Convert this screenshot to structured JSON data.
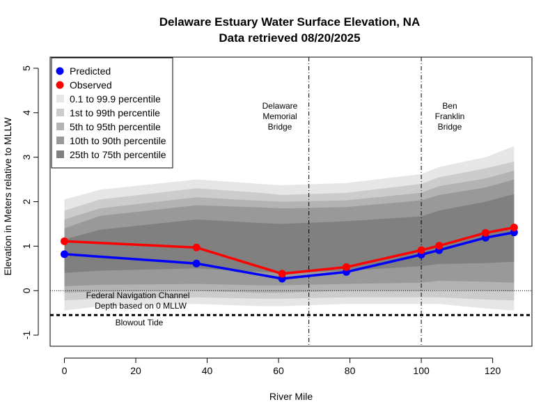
{
  "chart_data": {
    "type": "line",
    "title": "Delaware Estuary Water Surface Elevation,  NA",
    "subtitle": "Data retrieved  08/20/2025",
    "xlabel": "River Mile",
    "ylabel": "Elevation in Meters relative to MLLW",
    "xlim": [
      -4,
      131
    ],
    "ylim": [
      -1.25,
      5.25
    ],
    "xticks": [
      0,
      20,
      40,
      60,
      80,
      100,
      120
    ],
    "yticks": [
      -1,
      0,
      1,
      2,
      3,
      4,
      5
    ],
    "series": [
      {
        "name": "Predicted",
        "color": "#0000ff",
        "x": [
          0,
          37,
          61,
          79,
          100,
          105,
          118,
          126
        ],
        "y": [
          0.82,
          0.61,
          0.27,
          0.42,
          0.81,
          0.91,
          1.19,
          1.31
        ]
      },
      {
        "name": "Observed",
        "color": "#ff0000",
        "x": [
          0,
          37,
          61,
          79,
          100,
          105,
          118,
          126
        ],
        "y": [
          1.11,
          0.97,
          0.38,
          0.53,
          0.91,
          1.01,
          1.3,
          1.42
        ]
      }
    ],
    "bands": [
      {
        "name": "0.1 to 99.9 percentile",
        "color": "#e6e6e6",
        "x": [
          0,
          10,
          37,
          55,
          61,
          79,
          100,
          105,
          118,
          126
        ],
        "lower": [
          -0.45,
          -0.35,
          -0.3,
          -0.35,
          -0.35,
          -0.3,
          -0.3,
          -0.3,
          -0.4,
          -0.45
        ],
        "upper": [
          2.05,
          2.27,
          2.5,
          2.4,
          2.37,
          2.42,
          2.62,
          2.78,
          3.0,
          3.25
        ]
      },
      {
        "name": "1st to 99th percentile",
        "color": "#cccccc",
        "x": [
          0,
          10,
          37,
          55,
          61,
          79,
          100,
          105,
          118,
          126
        ],
        "lower": [
          -0.22,
          -0.18,
          -0.15,
          -0.18,
          -0.18,
          -0.15,
          -0.15,
          -0.15,
          -0.2,
          -0.22
        ],
        "upper": [
          1.8,
          2.05,
          2.3,
          2.2,
          2.15,
          2.2,
          2.4,
          2.55,
          2.75,
          2.9
        ]
      },
      {
        "name": "5th to 95th percentile",
        "color": "#b3b3b3",
        "x": [
          0,
          10,
          37,
          55,
          61,
          79,
          100,
          105,
          118,
          126
        ],
        "lower": [
          -0.05,
          -0.02,
          0.0,
          -0.05,
          -0.05,
          0.0,
          0.0,
          0.02,
          0.0,
          -0.02
        ],
        "upper": [
          1.6,
          1.85,
          2.1,
          2.02,
          2.0,
          2.03,
          2.2,
          2.35,
          2.52,
          2.7
        ]
      },
      {
        "name": "10th to 90th percentile",
        "color": "#999999",
        "x": [
          0,
          10,
          37,
          55,
          61,
          79,
          100,
          105,
          118,
          126
        ],
        "lower": [
          0.1,
          0.13,
          0.15,
          0.12,
          0.12,
          0.15,
          0.18,
          0.22,
          0.2,
          0.18
        ],
        "upper": [
          1.4,
          1.68,
          1.92,
          1.87,
          1.85,
          1.88,
          2.03,
          2.15,
          2.32,
          2.5
        ]
      },
      {
        "name": "25th to 75th percentile",
        "color": "#808080",
        "x": [
          0,
          10,
          37,
          55,
          61,
          79,
          100,
          105,
          118,
          126
        ],
        "lower": [
          0.4,
          0.45,
          0.5,
          0.42,
          0.4,
          0.45,
          0.55,
          0.6,
          0.62,
          0.65
        ],
        "upper": [
          1.15,
          1.37,
          1.6,
          1.52,
          1.5,
          1.56,
          1.67,
          1.8,
          2.0,
          2.17
        ]
      }
    ],
    "reference_lines": [
      {
        "name": "Federal Navigation Channel Depth based on 0 MLLW",
        "y": 0,
        "style": "dotted"
      },
      {
        "name": "Blowout Tide",
        "y": -0.55,
        "style": "thick-dashed"
      }
    ],
    "vertical_lines": [
      {
        "name": "Delaware Memorial Bridge",
        "x": 68.5
      },
      {
        "name": "Ben Franklin Bridge",
        "x": 100
      }
    ],
    "annotations": {
      "channel": [
        "Federal Navigation Channel",
        "Depth based on 0 MLLW"
      ],
      "blowout": "Blowout Tide",
      "bridge1": [
        "Delaware",
        "Memorial",
        "Bridge"
      ],
      "bridge2": [
        "Ben",
        "Franklin",
        "Bridge"
      ]
    },
    "legend": {
      "position": "top-left",
      "items": [
        {
          "label": "Predicted",
          "kind": "point",
          "color": "#0000ff"
        },
        {
          "label": "Observed",
          "kind": "point",
          "color": "#ff0000"
        },
        {
          "label": "0.1 to 99.9 percentile",
          "kind": "box",
          "color": "#e6e6e6"
        },
        {
          "label": "1st to 99th percentile",
          "kind": "box",
          "color": "#cccccc"
        },
        {
          "label": "5th to 95th percentile",
          "kind": "box",
          "color": "#b3b3b3"
        },
        {
          "label": "10th to 90th percentile",
          "kind": "box",
          "color": "#999999"
        },
        {
          "label": "25th to 75th percentile",
          "kind": "box",
          "color": "#808080"
        }
      ]
    }
  }
}
